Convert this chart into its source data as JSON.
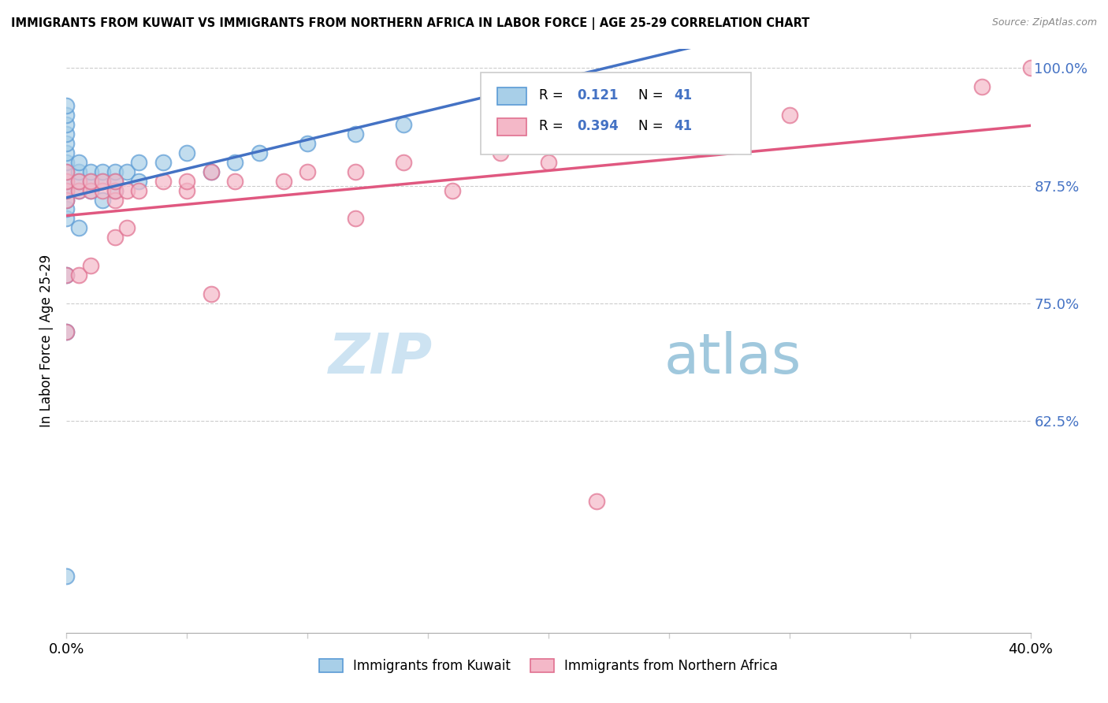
{
  "title": "IMMIGRANTS FROM KUWAIT VS IMMIGRANTS FROM NORTHERN AFRICA IN LABOR FORCE | AGE 25-29 CORRELATION CHART",
  "source": "Source: ZipAtlas.com",
  "ylabel": "In Labor Force | Age 25-29",
  "xmin": 0.0,
  "xmax": 0.4,
  "ymin": 0.4,
  "ymax": 1.02,
  "ytick_positions": [
    0.625,
    0.75,
    0.875,
    1.0
  ],
  "ytick_labels": [
    "62.5%",
    "75.0%",
    "87.5%",
    "100.0%"
  ],
  "xtick_positions": [
    0.0,
    0.05,
    0.1,
    0.15,
    0.2,
    0.25,
    0.3,
    0.35,
    0.4
  ],
  "r_kuwait": 0.121,
  "n_kuwait": 41,
  "r_nafrica": 0.394,
  "n_nafrica": 41,
  "color_kuwait_fill": "#a8cfe8",
  "color_kuwait_edge": "#5b9bd5",
  "color_nafrica_fill": "#f4b8c8",
  "color_nafrica_edge": "#e07090",
  "color_kuwait_line": "#4472c4",
  "color_nafrica_line": "#e05880",
  "color_text_r": "#4472c4",
  "color_text_n": "#4472c4",
  "watermark_zip": "ZIP",
  "watermark_atlas": "atlas",
  "legend_label_kuwait": "Immigrants from Kuwait",
  "legend_label_nafrica": "Immigrants from Northern Africa",
  "kuwait_x": [
    0.0,
    0.0,
    0.0,
    0.0,
    0.0,
    0.0,
    0.0,
    0.0,
    0.0,
    0.0,
    0.0,
    0.0,
    0.0,
    0.005,
    0.005,
    0.005,
    0.005,
    0.01,
    0.01,
    0.01,
    0.015,
    0.015,
    0.02,
    0.02,
    0.02,
    0.025,
    0.03,
    0.03,
    0.04,
    0.05,
    0.06,
    0.07,
    0.08,
    0.1,
    0.12,
    0.14,
    0.015,
    0.005,
    0.0,
    0.0,
    0.0
  ],
  "kuwait_y": [
    0.87,
    0.88,
    0.89,
    0.9,
    0.91,
    0.92,
    0.93,
    0.94,
    0.95,
    0.96,
    0.84,
    0.85,
    0.86,
    0.87,
    0.88,
    0.89,
    0.9,
    0.87,
    0.88,
    0.89,
    0.88,
    0.89,
    0.87,
    0.88,
    0.89,
    0.89,
    0.88,
    0.9,
    0.9,
    0.91,
    0.89,
    0.9,
    0.91,
    0.92,
    0.93,
    0.94,
    0.86,
    0.83,
    0.78,
    0.72,
    0.46
  ],
  "nafrica_x": [
    0.0,
    0.0,
    0.0,
    0.0,
    0.005,
    0.005,
    0.01,
    0.01,
    0.015,
    0.015,
    0.02,
    0.02,
    0.02,
    0.025,
    0.03,
    0.04,
    0.05,
    0.05,
    0.06,
    0.07,
    0.09,
    0.1,
    0.12,
    0.14,
    0.18,
    0.19,
    0.22,
    0.3,
    0.38,
    0.4,
    0.0,
    0.0,
    0.005,
    0.01,
    0.02,
    0.025,
    0.06,
    0.12,
    0.16,
    0.2,
    0.22
  ],
  "nafrica_y": [
    0.86,
    0.87,
    0.88,
    0.89,
    0.87,
    0.88,
    0.87,
    0.88,
    0.87,
    0.88,
    0.86,
    0.87,
    0.88,
    0.87,
    0.87,
    0.88,
    0.87,
    0.88,
    0.89,
    0.88,
    0.88,
    0.89,
    0.89,
    0.9,
    0.91,
    0.92,
    0.93,
    0.95,
    0.98,
    1.0,
    0.78,
    0.72,
    0.78,
    0.79,
    0.82,
    0.83,
    0.76,
    0.84,
    0.87,
    0.9,
    0.54
  ]
}
